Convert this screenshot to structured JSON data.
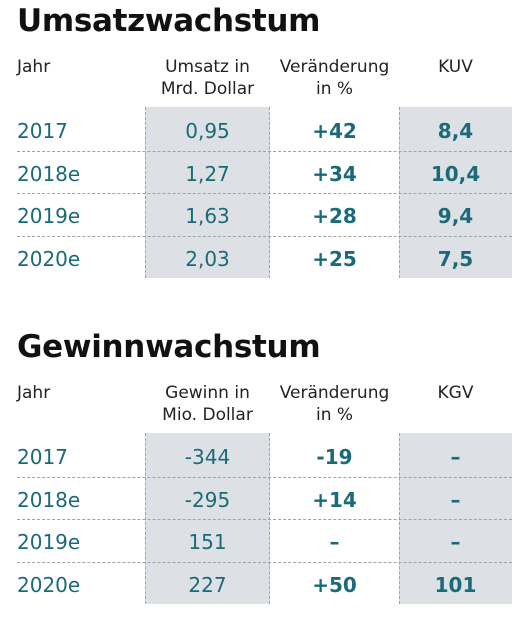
{
  "umsatz": {
    "title": "Umsatzwachstum",
    "headers": {
      "year": "Jahr",
      "col1": [
        "Umsatz in",
        "Mrd. Dollar"
      ],
      "col2": [
        "Veränderung",
        "in %"
      ],
      "col3": [
        "KUV"
      ]
    },
    "rows": [
      {
        "year": "2017",
        "value": "0,95",
        "change": "+42",
        "ratio": "8,4"
      },
      {
        "year": "2018e",
        "value": "1,27",
        "change": "+34",
        "ratio": "10,4"
      },
      {
        "year": "2019e",
        "value": "1,63",
        "change": "+28",
        "ratio": "9,4"
      },
      {
        "year": "2020e",
        "value": "2,03",
        "change": "+25",
        "ratio": "7,5"
      }
    ]
  },
  "gewinn": {
    "title": "Gewinnwachstum",
    "headers": {
      "year": "Jahr",
      "col1": [
        "Gewinn in",
        "Mio. Dollar"
      ],
      "col2": [
        "Veränderung",
        "in %"
      ],
      "col3": [
        "KGV"
      ]
    },
    "rows": [
      {
        "year": "2017",
        "value": "-344",
        "change": "-19",
        "ratio": "–"
      },
      {
        "year": "2018e",
        "value": "-295",
        "change": "+14",
        "ratio": "–"
      },
      {
        "year": "2019e",
        "value": "151",
        "change": "–",
        "ratio": "–"
      },
      {
        "year": "2020e",
        "value": "227",
        "change": "+50",
        "ratio": "101"
      }
    ]
  },
  "colors": {
    "value_text": "#1b6a78",
    "shade": "#dde1e6",
    "title": "#111111"
  }
}
